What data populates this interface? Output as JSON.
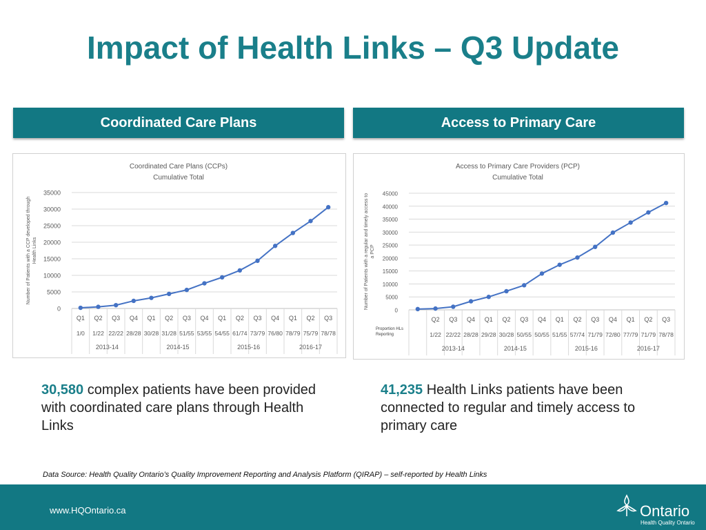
{
  "title": "Impact of Health Links – Q3 Update",
  "left_header": "Coordinated Care Plans",
  "right_header": "Access to Primary Care",
  "left_caption": {
    "number": "30,580",
    "text": " complex patients have been provided with coordinated care plans through Health Links"
  },
  "right_caption": {
    "number": "41,235",
    "text": " Health Links patients have been connected to regular and timely access to primary care"
  },
  "source": "Data Source:  Health Quality Ontario’s Quality Improvement Reporting and Analysis Platform (QIRAP) – self-reported by Health Links",
  "footer": {
    "url": "www.HQOntario.ca",
    "logo_name": "Ontario",
    "logo_sub": "Health Quality Ontario"
  },
  "colors": {
    "teal": "#127883",
    "title": "#1a7f8a",
    "line": "#4472c4"
  },
  "chart_data": [
    {
      "type": "line",
      "title": "Coordinated Care Plans (CCPs)",
      "subtitle": "Cumulative Total",
      "ylabel": "Number of Patients with a CCP developed through Health Links",
      "ylim": [
        0,
        35000
      ],
      "yticks": [
        0,
        5000,
        10000,
        15000,
        20000,
        25000,
        30000,
        35000
      ],
      "categories": [
        "Q1",
        "Q2",
        "Q3",
        "Q4",
        "Q1",
        "Q2",
        "Q3",
        "Q4",
        "Q1",
        "Q2",
        "Q3",
        "Q4",
        "Q1",
        "Q2",
        "Q3"
      ],
      "reporting": [
        "1/0",
        "1/22",
        "22/22",
        "28/28",
        "30/28",
        "31/28",
        "51/55",
        "53/55",
        "54/55",
        "61/74",
        "73/79",
        "76/80",
        "78/79",
        "75/79",
        "78/78"
      ],
      "years": [
        {
          "label": "2013-14",
          "span": [
            0,
            3
          ]
        },
        {
          "label": "2014-15",
          "span": [
            4,
            7
          ]
        },
        {
          "label": "2015-16",
          "span": [
            8,
            11
          ]
        },
        {
          "label": "2016-17",
          "span": [
            12,
            14
          ]
        }
      ],
      "values": [
        200,
        500,
        1000,
        2300,
        3200,
        4400,
        5600,
        7600,
        9400,
        11500,
        14400,
        18900,
        22800,
        26400,
        30580
      ]
    },
    {
      "type": "line",
      "title": "Access to Primary Care Providers (PCP)",
      "subtitle": "Cumulative Total",
      "ylabel": "Number of Patients with a regular and timely access to a PCP",
      "row_label": "Proportion HLs Reporting",
      "ylim": [
        0,
        45000
      ],
      "yticks": [
        0,
        5000,
        10000,
        15000,
        20000,
        25000,
        30000,
        35000,
        40000,
        45000
      ],
      "categories": [
        "",
        "Q2",
        "Q3",
        "Q4",
        "Q1",
        "Q2",
        "Q3",
        "Q4",
        "Q1",
        "Q2",
        "Q3",
        "Q4",
        "Q1",
        "Q2",
        "Q3"
      ],
      "reporting": [
        "",
        "1/22",
        "22/22",
        "28/28",
        "29/28",
        "30/28",
        "50/55",
        "50/55",
        "51/55",
        "57/74",
        "71/79",
        "72/80",
        "77/79",
        "71/79",
        "78/78"
      ],
      "years": [
        {
          "label": "2013-14",
          "span": [
            1,
            3
          ]
        },
        {
          "label": "2014-15",
          "span": [
            4,
            7
          ]
        },
        {
          "label": "2015-16",
          "span": [
            8,
            11
          ]
        },
        {
          "label": "2016-17",
          "span": [
            12,
            14
          ]
        }
      ],
      "values": [
        300,
        500,
        1200,
        3300,
        5000,
        7200,
        9500,
        14000,
        17400,
        20200,
        24300,
        29800,
        33700,
        37600,
        41235
      ]
    }
  ]
}
